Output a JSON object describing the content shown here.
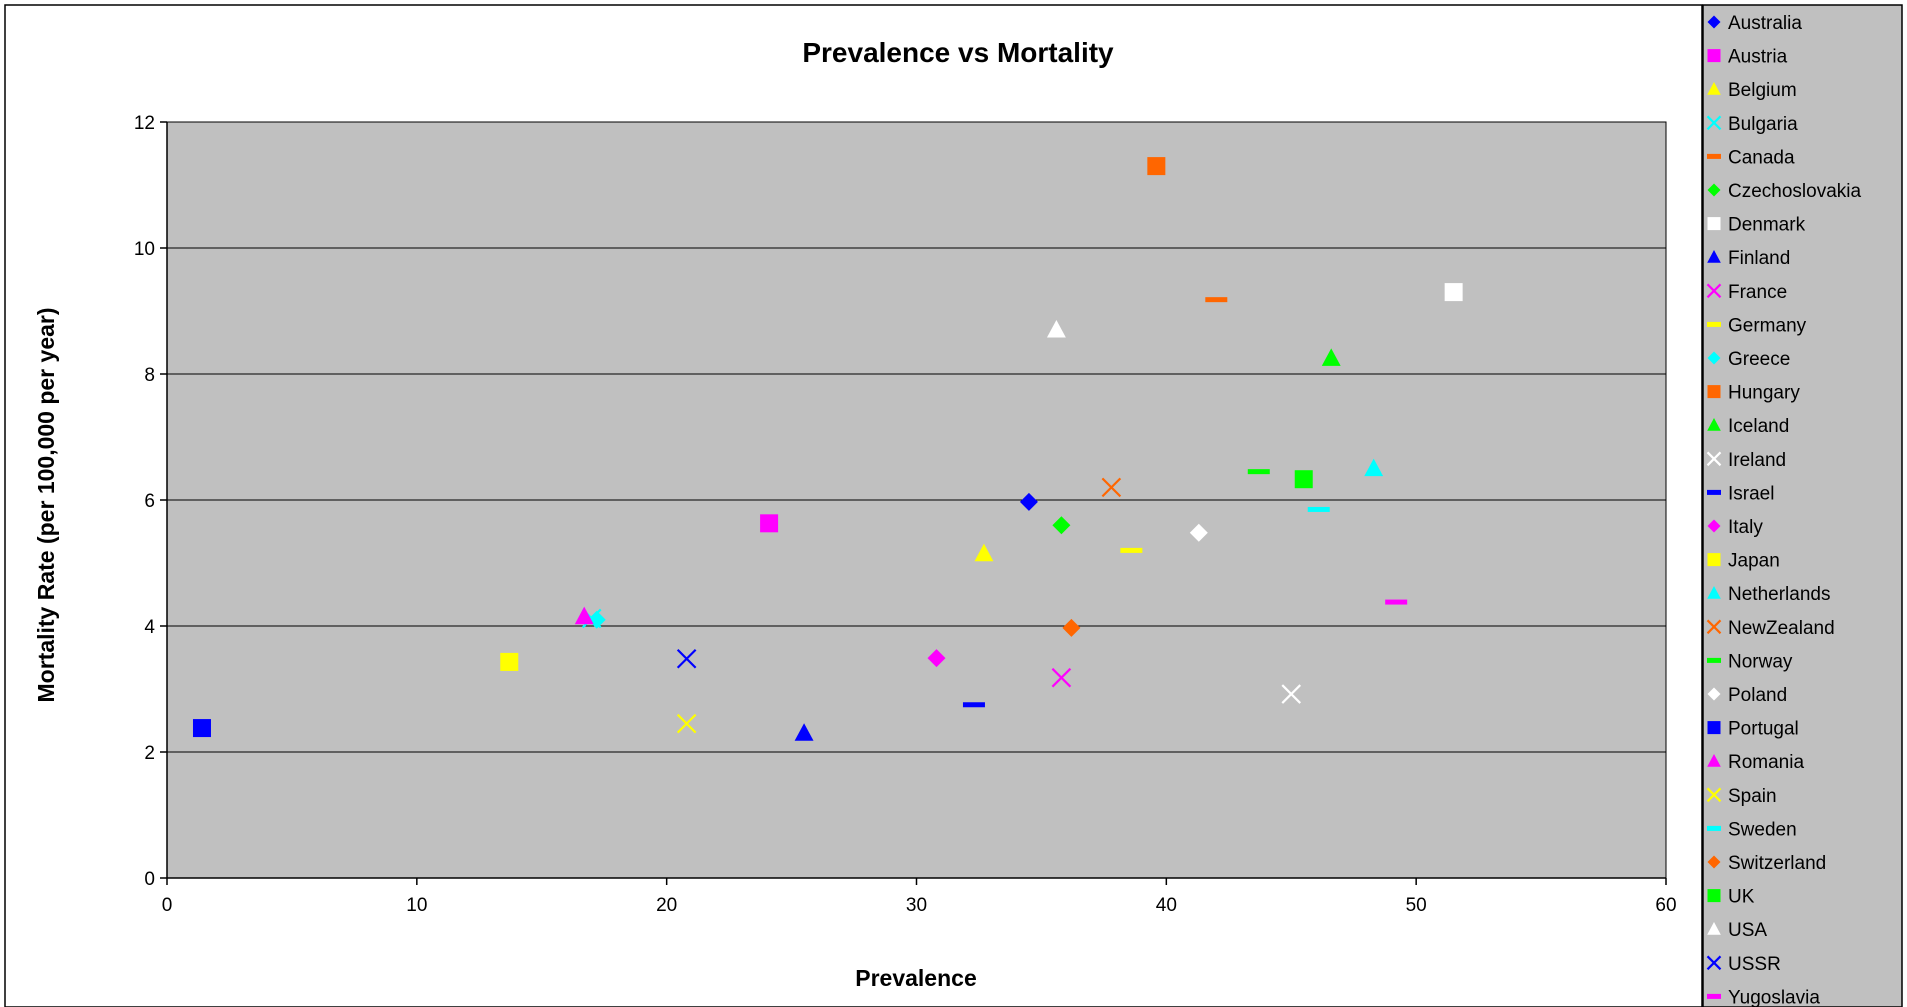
{
  "chart_data": {
    "type": "scatter",
    "title": "Prevalence vs Mortality",
    "xlabel": "Prevalence",
    "ylabel": "Mortality Rate (per 100,000 per year)",
    "xlim": [
      0,
      60
    ],
    "ylim": [
      0,
      12
    ],
    "xticks": [
      "0",
      "10",
      "20",
      "30",
      "40",
      "50",
      "60"
    ],
    "yticks": [
      "0",
      "2",
      "4",
      "6",
      "8",
      "10",
      "12"
    ],
    "grid": "horizontal",
    "plot_background": "#c0c0c0",
    "legend_position": "right",
    "series": [
      {
        "name": "Australia",
        "marker": "diamond",
        "color": "#0000ff",
        "x": 34.5,
        "y": 5.97
      },
      {
        "name": "Austria",
        "marker": "square",
        "color": "#ff00ff",
        "x": 24.1,
        "y": 5.63
      },
      {
        "name": "Belgium",
        "marker": "triangle",
        "color": "#ffff00",
        "x": 32.7,
        "y": 5.15
      },
      {
        "name": "Bulgaria",
        "marker": "x",
        "color": "#00ffff",
        "x": 17.0,
        "y": 4.12
      },
      {
        "name": "Canada",
        "marker": "dash",
        "color": "#ff6600",
        "x": 42.0,
        "y": 9.18
      },
      {
        "name": "Czechoslovakia",
        "marker": "diamond",
        "color": "#00ff00",
        "x": 35.8,
        "y": 5.6
      },
      {
        "name": "Denmark",
        "marker": "square",
        "color": "#ffffff",
        "x": 51.5,
        "y": 9.3
      },
      {
        "name": "Finland",
        "marker": "triangle",
        "color": "#0000ff",
        "x": 25.5,
        "y": 2.3
      },
      {
        "name": "France",
        "marker": "x",
        "color": "#ff00ff",
        "x": 35.8,
        "y": 3.18
      },
      {
        "name": "Germany",
        "marker": "dash",
        "color": "#ffff00",
        "x": 38.6,
        "y": 5.2
      },
      {
        "name": "Greece",
        "marker": "diamond",
        "color": "#00ffff",
        "x": 17.2,
        "y": 4.1
      },
      {
        "name": "Hungary",
        "marker": "square",
        "color": "#ff6600",
        "x": 39.6,
        "y": 11.3
      },
      {
        "name": "Iceland",
        "marker": "triangle",
        "color": "#00ff00",
        "x": 46.6,
        "y": 8.25
      },
      {
        "name": "Ireland",
        "marker": "x",
        "color": "#ffffff",
        "x": 45.0,
        "y": 2.92
      },
      {
        "name": "Israel",
        "marker": "dash",
        "color": "#0000ff",
        "x": 32.3,
        "y": 2.75
      },
      {
        "name": "Italy",
        "marker": "diamond",
        "color": "#ff00ff",
        "x": 30.8,
        "y": 3.49
      },
      {
        "name": "Japan",
        "marker": "square",
        "color": "#ffff00",
        "x": 13.7,
        "y": 3.43
      },
      {
        "name": "Netherlands",
        "marker": "triangle",
        "color": "#00ffff",
        "x": 48.3,
        "y": 6.5
      },
      {
        "name": "NewZealand",
        "marker": "x",
        "color": "#ff6600",
        "x": 37.8,
        "y": 6.2
      },
      {
        "name": "Norway",
        "marker": "dash",
        "color": "#00ff00",
        "x": 43.7,
        "y": 6.45
      },
      {
        "name": "Poland",
        "marker": "diamond",
        "color": "#ffffff",
        "x": 41.3,
        "y": 5.48
      },
      {
        "name": "Portugal",
        "marker": "square",
        "color": "#0000ff",
        "x": 1.4,
        "y": 2.38
      },
      {
        "name": "Romania",
        "marker": "triangle",
        "color": "#ff00ff",
        "x": 16.7,
        "y": 4.15
      },
      {
        "name": "Spain",
        "marker": "x",
        "color": "#ffff00",
        "x": 20.8,
        "y": 2.45
      },
      {
        "name": "Sweden",
        "marker": "dash",
        "color": "#00ffff",
        "x": 46.1,
        "y": 5.85
      },
      {
        "name": "Switzerland",
        "marker": "diamond",
        "color": "#ff6600",
        "x": 36.2,
        "y": 3.97
      },
      {
        "name": "UK",
        "marker": "square",
        "color": "#00ff00",
        "x": 45.5,
        "y": 6.33
      },
      {
        "name": "USA",
        "marker": "triangle",
        "color": "#ffffff",
        "x": 35.6,
        "y": 8.7
      },
      {
        "name": "USSR",
        "marker": "x",
        "color": "#0000ff",
        "x": 20.8,
        "y": 3.48
      },
      {
        "name": "Yugoslavia",
        "marker": "dash",
        "color": "#ff00ff",
        "x": 49.2,
        "y": 4.38
      }
    ]
  }
}
